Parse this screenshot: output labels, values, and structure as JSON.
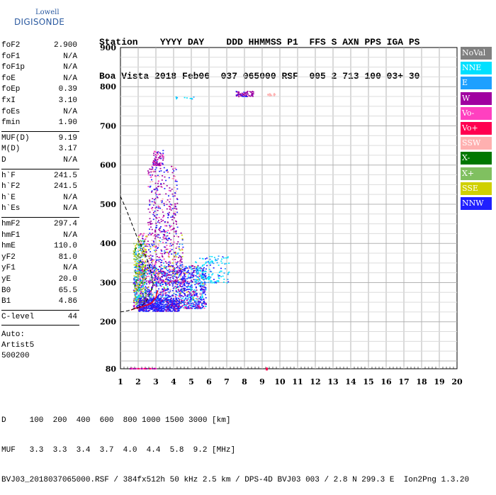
{
  "logo": {
    "line1": "Lowell",
    "line2": "DIGISONDE"
  },
  "header": {
    "row1": "Station    YYYY DAY    DDD HHMMSS P1  FFS S AXN PPS IGA PS",
    "row2": "Boa Vista 2018 Feb06  037 065000 RSF  005 2 713 100 03+ 30"
  },
  "params": {
    "group1": [
      {
        "name": "foF2",
        "value": "2.900"
      },
      {
        "name": "foF1",
        "value": "N/A"
      },
      {
        "name": "foF1p",
        "value": "N/A"
      },
      {
        "name": "foE",
        "value": "N/A"
      },
      {
        "name": "foEp",
        "value": "0.39"
      },
      {
        "name": "fxI",
        "value": "3.10"
      },
      {
        "name": "foEs",
        "value": "N/A"
      },
      {
        "name": "fmin",
        "value": "1.90"
      }
    ],
    "group2": [
      {
        "name": "MUF(D)",
        "value": "9.19"
      },
      {
        "name": "M(D)",
        "value": "3.17"
      },
      {
        "name": "D",
        "value": "N/A"
      }
    ],
    "group3": [
      {
        "name": "h`F",
        "value": "241.5"
      },
      {
        "name": "h`F2",
        "value": "241.5"
      },
      {
        "name": "h`E",
        "value": "N/A"
      },
      {
        "name": "h`Es",
        "value": "N/A"
      }
    ],
    "group4": [
      {
        "name": "hmF2",
        "value": "297.4"
      },
      {
        "name": "hmF1",
        "value": "N/A"
      },
      {
        "name": "hmE",
        "value": "110.0"
      },
      {
        "name": "yF2",
        "value": "81.0"
      },
      {
        "name": "yF1",
        "value": "N/A"
      },
      {
        "name": "yE",
        "value": "20.0"
      },
      {
        "name": "B0",
        "value": "65.5"
      },
      {
        "name": "B1",
        "value": "4.86"
      }
    ],
    "clevel": {
      "name": "C-level",
      "value": "44"
    },
    "auto": [
      "Auto:",
      "Artist5",
      "500200"
    ]
  },
  "legend": [
    {
      "label": "NoVal",
      "color": "#808080"
    },
    {
      "label": "NNE",
      "color": "#00e0ff"
    },
    {
      "label": "E",
      "color": "#1ea0ff"
    },
    {
      "label": "W",
      "color": "#a000a0"
    },
    {
      "label": "Vo-",
      "color": "#ff40c0"
    },
    {
      "label": "Vo+",
      "color": "#ff0050"
    },
    {
      "label": "SSW",
      "color": "#ffb0b0"
    },
    {
      "label": "X-",
      "color": "#007800"
    },
    {
      "label": "X+",
      "color": "#80c060"
    },
    {
      "label": "SSE",
      "color": "#d0d000"
    },
    {
      "label": "NNW",
      "color": "#2020ff"
    }
  ],
  "bottom": {
    "line1": "D     100  200  400  600  800 1000 1500 3000 [km]",
    "line2": "MUF   3.3  3.3  3.4  3.7  4.0  4.4  5.8  9.2 [MHz]",
    "line3": "BVJ03_2018037065000.RSF / 384fx512h 50 kHz 2.5 km / DPS-4D BVJ03 003 / 2.8 N 299.3 E  Ion2Png 1.3.20"
  },
  "chart_data": {
    "type": "scatter",
    "x": {
      "range": [
        1,
        20
      ],
      "ticks": [
        1,
        2,
        3,
        4,
        5,
        6,
        7,
        8,
        9,
        10,
        11,
        12,
        13,
        14,
        15,
        16,
        17,
        18,
        19,
        20
      ]
    },
    "y": {
      "range": [
        80,
        900
      ],
      "ticks": [
        80,
        200,
        300,
        400,
        500,
        600,
        700,
        800,
        900
      ]
    },
    "grid": true,
    "legend_position": "right",
    "trace_points": [
      [
        1.6,
        230
      ],
      [
        1.8,
        234
      ],
      [
        2.0,
        236
      ],
      [
        2.2,
        238
      ],
      [
        2.4,
        241
      ],
      [
        2.6,
        244
      ],
      [
        2.8,
        250
      ],
      [
        3.0,
        262
      ],
      [
        3.1,
        280
      ]
    ],
    "profile_curve": [
      [
        1.0,
        225
      ],
      [
        1.4,
        228
      ],
      [
        1.8,
        233
      ],
      [
        2.2,
        240
      ],
      [
        2.5,
        255
      ],
      [
        2.7,
        275
      ],
      [
        2.85,
        297
      ]
    ],
    "topside_curve": [
      [
        1.0,
        520
      ],
      [
        1.3,
        490
      ],
      [
        1.6,
        455
      ],
      [
        1.9,
        420
      ],
      [
        2.2,
        390
      ],
      [
        2.5,
        360
      ],
      [
        2.7,
        330
      ],
      [
        2.85,
        297
      ]
    ]
  }
}
